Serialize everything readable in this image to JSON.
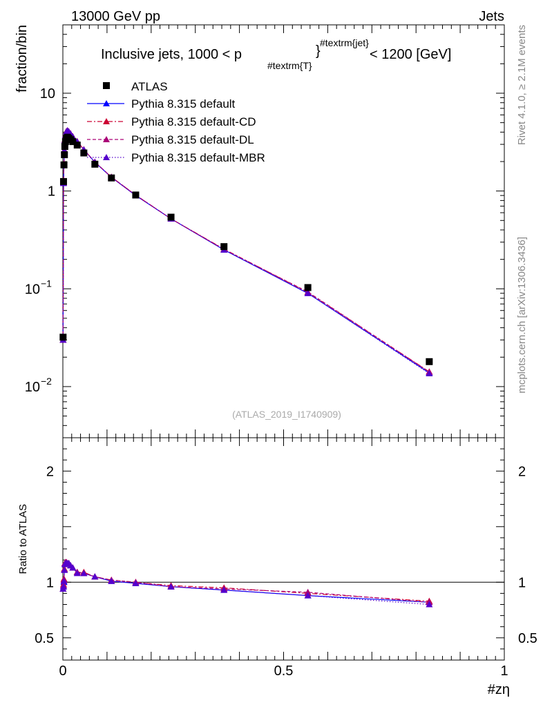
{
  "header": {
    "left": "13000 GeV pp",
    "right": "Jets"
  },
  "side": {
    "top": "Rivet 4.1.0, ≥ 2.1M events",
    "bottom": "mcplots.cern.ch [arXiv:1306.3436]"
  },
  "watermark": "(ATLAS_2019_I1740909)",
  "chart_data": {
    "type": "scatter",
    "title_main": "Inclusive jets, 1000 < p",
    "title_sub": "#textrm{T}",
    "title_sup": "#textrm{jet}",
    "title_tail": " < 1200 [GeV]",
    "xlabel": "#zη",
    "ylabel": "fraction/bin",
    "ratio_ylabel": "Ratio to ATLAS",
    "xlim": [
      0,
      1
    ],
    "ylim": [
      0.003,
      50
    ],
    "ratio_ylim": [
      0.3,
      2.3
    ],
    "y_scale": "log",
    "x_ticks": [
      "0",
      "0.5",
      "1"
    ],
    "y_ticks": [
      {
        "v": 10,
        "base": "10",
        "exp": ""
      },
      {
        "v": 1,
        "base": "1",
        "exp": ""
      },
      {
        "v": 0.1,
        "base": "10",
        "exp": "−1"
      },
      {
        "v": 0.01,
        "base": "10",
        "exp": "−2"
      }
    ],
    "ratio_ticks": [
      {
        "v": 2,
        "label": "2"
      },
      {
        "v": 1,
        "label": "1"
      },
      {
        "v": 0.5,
        "label": "0.5"
      }
    ],
    "x": [
      0.0005,
      0.0015,
      0.0025,
      0.0035,
      0.0045,
      0.006,
      0.008,
      0.0105,
      0.0135,
      0.0175,
      0.0225,
      0.0325,
      0.0475,
      0.0725,
      0.11,
      0.165,
      0.245,
      0.365,
      0.555,
      0.83
    ],
    "data": {
      "name": "ATLAS",
      "color": "#000000",
      "values": [
        0.032,
        1.25,
        1.85,
        2.35,
        2.85,
        3.2,
        3.45,
        3.55,
        3.45,
        3.35,
        3.2,
        2.95,
        2.45,
        1.88,
        1.36,
        0.91,
        0.54,
        0.27,
        0.103,
        0.018
      ]
    },
    "series": [
      {
        "name": "Pythia 8.315 default",
        "color": "#0000ff",
        "dash": "",
        "values": [
          0.03,
          1.2,
          1.85,
          2.6,
          3.3,
          3.75,
          4.05,
          4.15,
          4.05,
          3.85,
          3.6,
          3.2,
          2.65,
          1.97,
          1.38,
          0.9,
          0.52,
          0.25,
          0.09,
          0.0138
        ],
        "ratio": [
          0.94,
          0.96,
          1.0,
          1.11,
          1.16,
          1.17,
          1.17,
          1.17,
          1.17,
          1.15,
          1.13,
          1.09,
          1.08,
          1.05,
          1.01,
          0.99,
          0.96,
          0.93,
          0.88,
          0.82
        ]
      },
      {
        "name": "Pythia 8.315 default-CD",
        "color": "#cc0033",
        "dash": "7,3,2,3",
        "values": [
          0.03,
          1.22,
          1.9,
          2.62,
          3.35,
          3.78,
          4.08,
          4.15,
          4.05,
          3.86,
          3.6,
          3.22,
          2.66,
          1.98,
          1.39,
          0.91,
          0.52,
          0.255,
          0.092,
          0.0142
        ],
        "ratio": [
          0.94,
          0.98,
          1.03,
          1.12,
          1.17,
          1.18,
          1.18,
          1.17,
          1.17,
          1.15,
          1.13,
          1.09,
          1.09,
          1.05,
          1.02,
          1.0,
          0.97,
          0.95,
          0.9,
          0.83
        ]
      },
      {
        "name": "Pythia 8.315 default-DL",
        "color": "#aa0077",
        "dash": "5,3",
        "values": [
          0.03,
          1.21,
          1.88,
          2.61,
          3.32,
          3.76,
          4.06,
          4.14,
          4.04,
          3.85,
          3.6,
          3.21,
          2.65,
          1.98,
          1.39,
          0.91,
          0.52,
          0.253,
          0.093,
          0.0141
        ],
        "ratio": [
          0.94,
          0.97,
          1.02,
          1.11,
          1.17,
          1.18,
          1.18,
          1.17,
          1.17,
          1.15,
          1.13,
          1.09,
          1.08,
          1.05,
          1.02,
          1.0,
          0.96,
          0.94,
          0.91,
          0.82
        ]
      },
      {
        "name": "Pythia 8.315 default-MBR",
        "color": "#5500cc",
        "dash": "1.5,2.5",
        "values": [
          0.03,
          1.2,
          1.86,
          2.6,
          3.3,
          3.74,
          4.05,
          4.13,
          4.03,
          3.84,
          3.58,
          3.2,
          2.64,
          1.97,
          1.38,
          0.9,
          0.52,
          0.25,
          0.09,
          0.0136
        ],
        "ratio": [
          0.94,
          0.96,
          1.01,
          1.11,
          1.16,
          1.17,
          1.17,
          1.17,
          1.17,
          1.15,
          1.13,
          1.08,
          1.08,
          1.05,
          1.01,
          0.99,
          0.96,
          0.93,
          0.88,
          0.8
        ]
      }
    ]
  }
}
